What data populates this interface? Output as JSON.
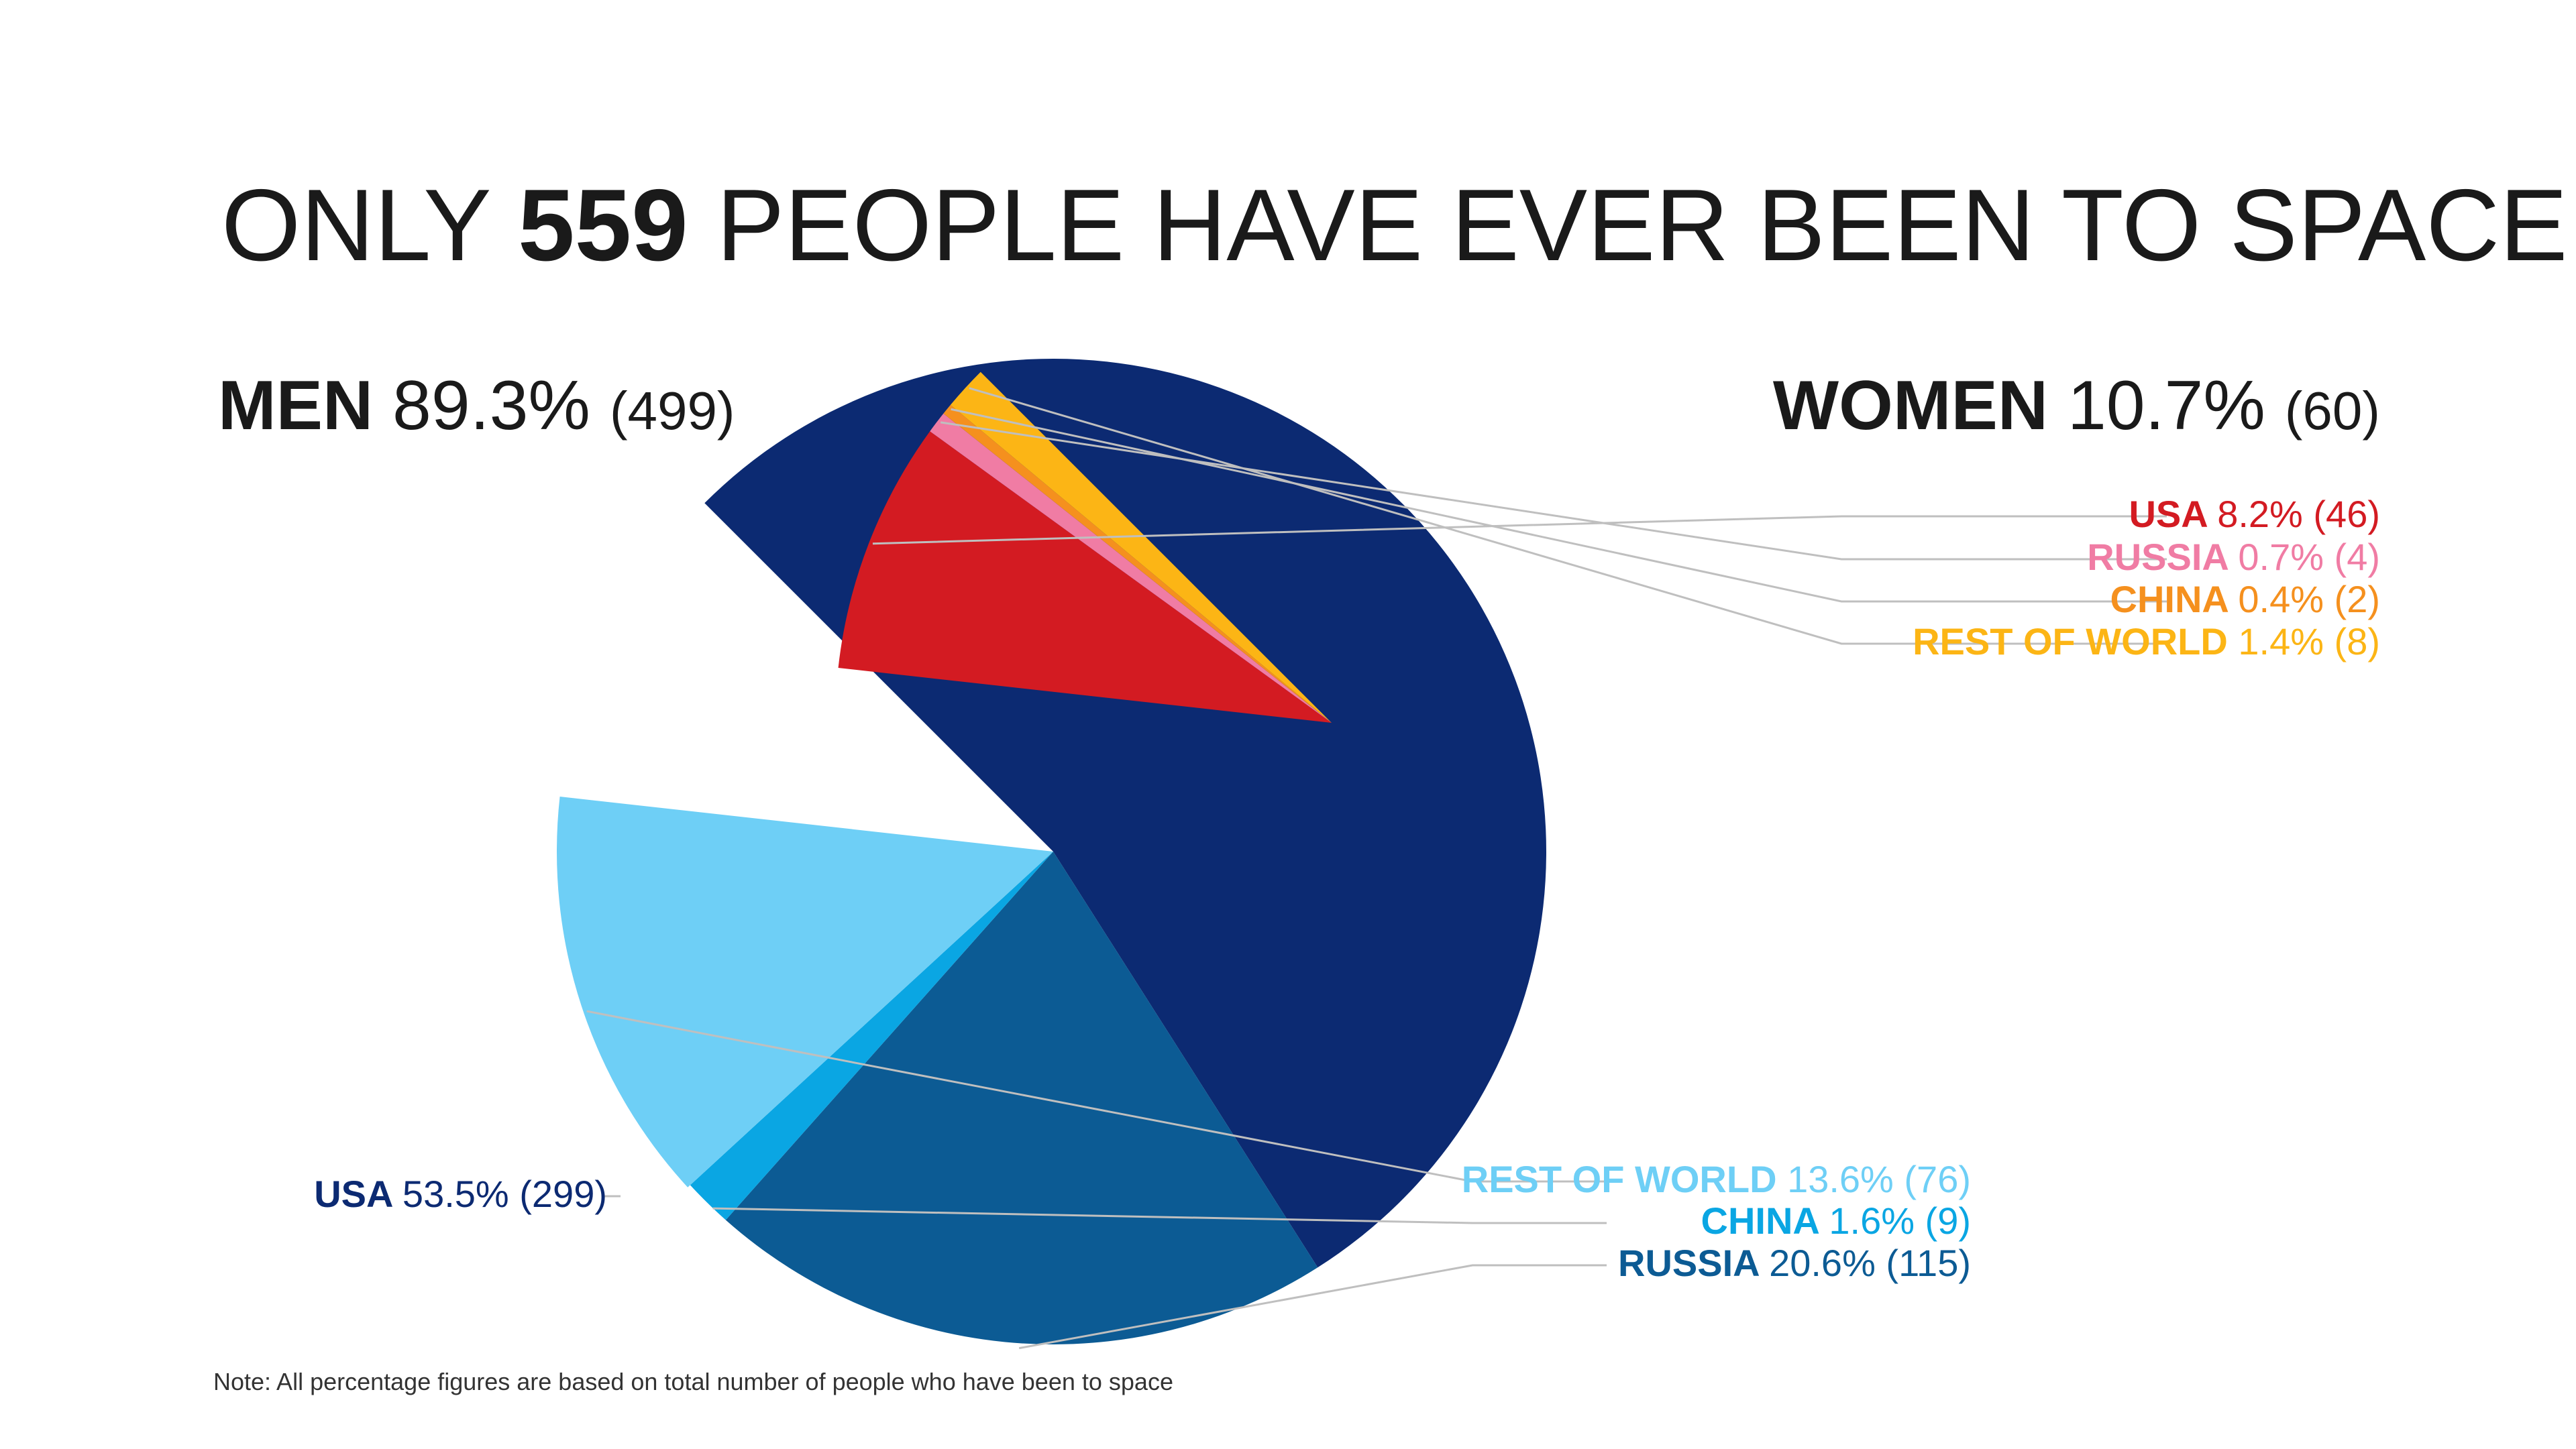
{
  "title": {
    "prefix": "ONLY",
    "highlight": "559",
    "suffix": "PEOPLE HAVE EVER BEEN TO SPACE"
  },
  "note": "Note: All percentage figures are based on total number of people who have been to space",
  "chart_data": {
    "type": "pie",
    "total": 559,
    "groups": [
      {
        "name": "MEN",
        "percent": "89.3%",
        "count": "(499)",
        "value": 499,
        "slices": [
          {
            "name": "USA",
            "percent": "53.5%",
            "count": "(299)",
            "value": 299,
            "color": "#0c2a72"
          },
          {
            "name": "RUSSIA",
            "percent": "20.6%",
            "count": "(115)",
            "value": 115,
            "color": "#0c5b94"
          },
          {
            "name": "CHINA",
            "percent": "1.6%",
            "count": "(9)",
            "value": 9,
            "color": "#0aa6e3"
          },
          {
            "name": "REST OF WORLD",
            "percent": "13.6%",
            "count": "(76)",
            "value": 76,
            "color": "#6ecff6"
          }
        ]
      },
      {
        "name": "WOMEN",
        "percent": "10.7%",
        "count": "(60)",
        "value": 60,
        "slices": [
          {
            "name": "USA",
            "percent": "8.2%",
            "count": "(46)",
            "value": 46,
            "color": "#d31b22"
          },
          {
            "name": "RUSSIA",
            "percent": "0.7%",
            "count": "(4)",
            "value": 4,
            "color": "#f07ca4"
          },
          {
            "name": "CHINA",
            "percent": "0.4%",
            "count": "(2)",
            "value": 2,
            "color": "#f5901e"
          },
          {
            "name": "REST OF WORLD",
            "percent": "1.4%",
            "count": "(8)",
            "value": 8,
            "color": "#fcb515"
          }
        ]
      }
    ]
  },
  "colors": {
    "text_dark": "#1a1a1a",
    "leader_line": "#bfbfbf"
  }
}
